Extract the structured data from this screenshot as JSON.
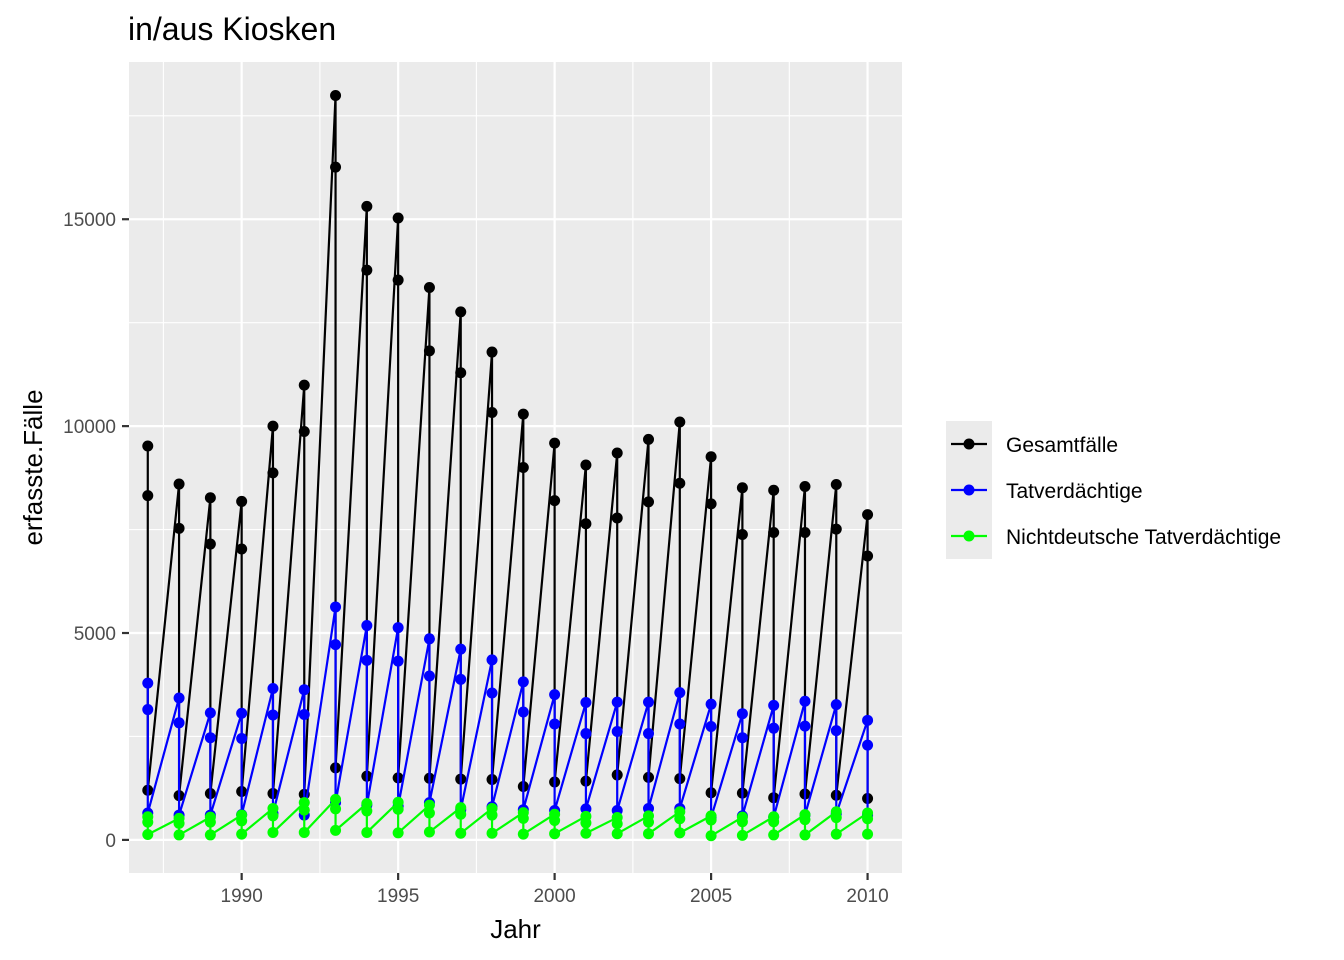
{
  "chart_data": {
    "type": "line",
    "title": "in/aus Kiosken",
    "xlabel": "Jahr",
    "ylabel": "erfasste.Fälle",
    "xlim": [
      1986.4,
      2011.1
    ],
    "ylim": [
      -800,
      18800
    ],
    "x_ticks": [
      1990,
      1995,
      2000,
      2005,
      2010
    ],
    "y_ticks": [
      0,
      5000,
      10000,
      15000
    ],
    "grid": true,
    "legend_position": "right",
    "markers": true,
    "series": [
      {
        "name": "Gesamtfälle",
        "color": "#000000",
        "points": [
          [
            1987,
            9520
          ],
          [
            1987,
            8320
          ],
          [
            1987,
            1200
          ],
          [
            1988,
            8600
          ],
          [
            1988,
            7530
          ],
          [
            1988,
            1070
          ],
          [
            1989,
            8270
          ],
          [
            1989,
            7150
          ],
          [
            1989,
            1120
          ],
          [
            1990,
            8180
          ],
          [
            1990,
            7030
          ],
          [
            1990,
            1170
          ],
          [
            1991,
            10000
          ],
          [
            1991,
            8870
          ],
          [
            1991,
            1120
          ],
          [
            1992,
            10990
          ],
          [
            1992,
            9870
          ],
          [
            1992,
            1100
          ],
          [
            1993,
            17990
          ],
          [
            1993,
            16260
          ],
          [
            1993,
            1740
          ],
          [
            1994,
            15310
          ],
          [
            1994,
            13770
          ],
          [
            1994,
            1540
          ],
          [
            1995,
            15030
          ],
          [
            1995,
            13530
          ],
          [
            1995,
            1500
          ],
          [
            1996,
            13350
          ],
          [
            1996,
            11820
          ],
          [
            1996,
            1490
          ],
          [
            1997,
            12760
          ],
          [
            1997,
            11290
          ],
          [
            1997,
            1470
          ],
          [
            1998,
            11790
          ],
          [
            1998,
            10330
          ],
          [
            1998,
            1460
          ],
          [
            1999,
            10290
          ],
          [
            1999,
            9000
          ],
          [
            1999,
            1290
          ],
          [
            2000,
            9590
          ],
          [
            2000,
            8200
          ],
          [
            2000,
            1400
          ],
          [
            2001,
            9060
          ],
          [
            2001,
            7640
          ],
          [
            2001,
            1420
          ],
          [
            2002,
            9350
          ],
          [
            2002,
            7780
          ],
          [
            2002,
            1570
          ],
          [
            2003,
            9680
          ],
          [
            2003,
            8170
          ],
          [
            2003,
            1510
          ],
          [
            2004,
            10100
          ],
          [
            2004,
            8620
          ],
          [
            2004,
            1480
          ],
          [
            2005,
            9260
          ],
          [
            2005,
            8120
          ],
          [
            2005,
            1140
          ],
          [
            2006,
            8510
          ],
          [
            2006,
            7380
          ],
          [
            2006,
            1130
          ],
          [
            2007,
            8450
          ],
          [
            2007,
            7430
          ],
          [
            2007,
            1020
          ],
          [
            2008,
            8540
          ],
          [
            2008,
            7430
          ],
          [
            2008,
            1110
          ],
          [
            2009,
            8590
          ],
          [
            2009,
            7510
          ],
          [
            2009,
            1080
          ],
          [
            2010,
            7860
          ],
          [
            2010,
            6860
          ],
          [
            2010,
            1000
          ]
        ]
      },
      {
        "name": "Tatverdächtige",
        "color": "#0000ff",
        "points": [
          [
            1987,
            3790
          ],
          [
            1987,
            3150
          ],
          [
            1987,
            650
          ],
          [
            1988,
            3430
          ],
          [
            1988,
            2830
          ],
          [
            1988,
            600
          ],
          [
            1989,
            3070
          ],
          [
            1989,
            2470
          ],
          [
            1989,
            600
          ],
          [
            1990,
            3060
          ],
          [
            1990,
            2450
          ],
          [
            1990,
            610
          ],
          [
            1991,
            3660
          ],
          [
            1991,
            3020
          ],
          [
            1991,
            640
          ],
          [
            1992,
            3630
          ],
          [
            1992,
            3030
          ],
          [
            1992,
            600
          ],
          [
            1993,
            5630
          ],
          [
            1993,
            4720
          ],
          [
            1993,
            900
          ],
          [
            1994,
            5180
          ],
          [
            1994,
            4340
          ],
          [
            1994,
            840
          ],
          [
            1995,
            5130
          ],
          [
            1995,
            4320
          ],
          [
            1995,
            810
          ],
          [
            1996,
            4860
          ],
          [
            1996,
            3960
          ],
          [
            1996,
            900
          ],
          [
            1997,
            4610
          ],
          [
            1997,
            3880
          ],
          [
            1997,
            730
          ],
          [
            1998,
            4350
          ],
          [
            1998,
            3550
          ],
          [
            1998,
            800
          ],
          [
            1999,
            3820
          ],
          [
            1999,
            3090
          ],
          [
            1999,
            730
          ],
          [
            2000,
            3510
          ],
          [
            2000,
            2800
          ],
          [
            2000,
            710
          ],
          [
            2001,
            3320
          ],
          [
            2001,
            2570
          ],
          [
            2001,
            750
          ],
          [
            2002,
            3330
          ],
          [
            2002,
            2620
          ],
          [
            2002,
            710
          ],
          [
            2003,
            3330
          ],
          [
            2003,
            2570
          ],
          [
            2003,
            760
          ],
          [
            2004,
            3560
          ],
          [
            2004,
            2800
          ],
          [
            2004,
            760
          ],
          [
            2005,
            3280
          ],
          [
            2005,
            2740
          ],
          [
            2005,
            540
          ],
          [
            2006,
            3050
          ],
          [
            2006,
            2470
          ],
          [
            2006,
            580
          ],
          [
            2007,
            3250
          ],
          [
            2007,
            2700
          ],
          [
            2007,
            550
          ],
          [
            2008,
            3350
          ],
          [
            2008,
            2750
          ],
          [
            2008,
            600
          ],
          [
            2009,
            3270
          ],
          [
            2009,
            2640
          ],
          [
            2009,
            630
          ],
          [
            2010,
            2890
          ],
          [
            2010,
            2290
          ],
          [
            2010,
            600
          ]
        ]
      },
      {
        "name": "Nichtdeutsche Tatverdächtige",
        "color": "#00ff00",
        "points": [
          [
            1987,
            560
          ],
          [
            1987,
            430
          ],
          [
            1987,
            130
          ],
          [
            1988,
            520
          ],
          [
            1988,
            400
          ],
          [
            1988,
            120
          ],
          [
            1989,
            550
          ],
          [
            1989,
            430
          ],
          [
            1989,
            120
          ],
          [
            1990,
            600
          ],
          [
            1990,
            460
          ],
          [
            1990,
            140
          ],
          [
            1991,
            760
          ],
          [
            1991,
            580
          ],
          [
            1991,
            180
          ],
          [
            1992,
            900
          ],
          [
            1992,
            720
          ],
          [
            1992,
            180
          ],
          [
            1993,
            980
          ],
          [
            1993,
            750
          ],
          [
            1993,
            230
          ],
          [
            1994,
            880
          ],
          [
            1994,
            700
          ],
          [
            1994,
            180
          ],
          [
            1995,
            910
          ],
          [
            1995,
            740
          ],
          [
            1995,
            170
          ],
          [
            1996,
            840
          ],
          [
            1996,
            650
          ],
          [
            1996,
            190
          ],
          [
            1997,
            780
          ],
          [
            1997,
            620
          ],
          [
            1997,
            160
          ],
          [
            1998,
            760
          ],
          [
            1998,
            600
          ],
          [
            1998,
            160
          ],
          [
            1999,
            660
          ],
          [
            1999,
            520
          ],
          [
            1999,
            140
          ],
          [
            2000,
            620
          ],
          [
            2000,
            470
          ],
          [
            2000,
            150
          ],
          [
            2001,
            570
          ],
          [
            2001,
            410
          ],
          [
            2001,
            160
          ],
          [
            2002,
            540
          ],
          [
            2002,
            390
          ],
          [
            2002,
            150
          ],
          [
            2003,
            580
          ],
          [
            2003,
            430
          ],
          [
            2003,
            150
          ],
          [
            2004,
            680
          ],
          [
            2004,
            510
          ],
          [
            2004,
            170
          ],
          [
            2005,
            580
          ],
          [
            2005,
            480
          ],
          [
            2005,
            100
          ],
          [
            2006,
            550
          ],
          [
            2006,
            440
          ],
          [
            2006,
            110
          ],
          [
            2007,
            560
          ],
          [
            2007,
            440
          ],
          [
            2007,
            120
          ],
          [
            2008,
            610
          ],
          [
            2008,
            490
          ],
          [
            2008,
            120
          ],
          [
            2009,
            680
          ],
          [
            2009,
            540
          ],
          [
            2009,
            140
          ],
          [
            2010,
            650
          ],
          [
            2010,
            510
          ],
          [
            2010,
            140
          ]
        ]
      }
    ]
  }
}
